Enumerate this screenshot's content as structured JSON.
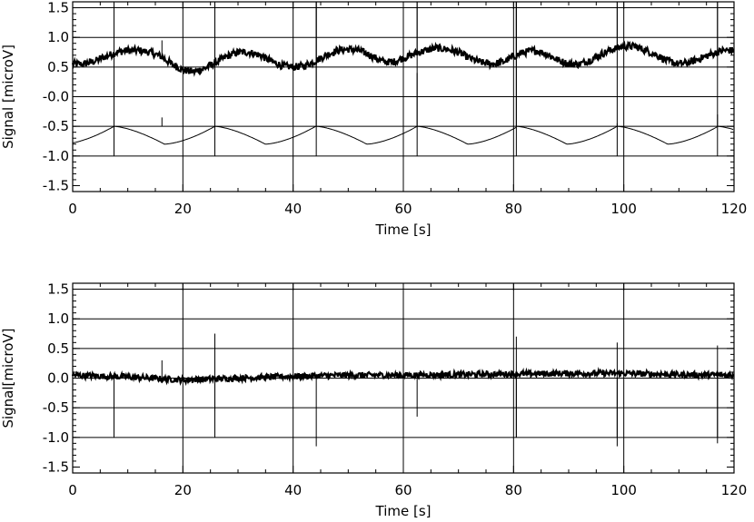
{
  "chart_data": [
    {
      "type": "line",
      "xlabel": "Time [s]",
      "ylabel": "Signal [microV]",
      "xlim": [
        0,
        120
      ],
      "ylim": [
        -1.6,
        1.6
      ],
      "x_ticks": [
        0,
        20,
        40,
        60,
        80,
        100,
        120
      ],
      "y_ticks": [
        -1.5,
        -1.0,
        -0.5,
        -0.0,
        0.5,
        1.0,
        1.5
      ],
      "y_tick_labels": [
        "-1.5",
        "-1.0",
        "-0.5",
        "-0.0",
        "0.5",
        "1.0",
        "1.5"
      ],
      "grid": true,
      "series": [
        {
          "x": [
            0,
            2,
            4,
            6,
            8,
            10,
            12,
            14,
            16,
            18,
            20,
            22,
            24,
            26,
            28,
            30,
            32,
            34,
            36,
            38,
            40,
            42,
            44,
            46,
            48,
            50,
            52,
            54,
            56,
            58,
            60,
            62,
            64,
            66,
            68,
            70,
            72,
            74,
            76,
            78,
            80,
            82,
            84,
            86,
            88,
            90,
            92,
            94,
            96,
            98,
            100,
            102,
            104,
            106,
            108,
            110,
            112,
            114,
            116,
            118,
            120
          ],
          "values": [
            0.55,
            0.55,
            0.6,
            0.68,
            0.75,
            0.78,
            0.78,
            0.75,
            0.68,
            0.55,
            0.45,
            0.42,
            0.48,
            0.58,
            0.68,
            0.75,
            0.75,
            0.7,
            0.6,
            0.52,
            0.5,
            0.52,
            0.6,
            0.7,
            0.78,
            0.8,
            0.78,
            0.7,
            0.6,
            0.58,
            0.65,
            0.72,
            0.78,
            0.82,
            0.8,
            0.75,
            0.65,
            0.58,
            0.55,
            0.58,
            0.68,
            0.75,
            0.78,
            0.72,
            0.62,
            0.55,
            0.55,
            0.62,
            0.72,
            0.8,
            0.85,
            0.85,
            0.78,
            0.7,
            0.6,
            0.55,
            0.58,
            0.65,
            0.72,
            0.78,
            0.78
          ],
          "noise_amplitude": 0.06,
          "spikes": [
            {
              "x": 7.5,
              "to": 1.6
            },
            {
              "x": 16.2,
              "to": 0.95
            },
            {
              "x": 25.8,
              "to": 1.6
            },
            {
              "x": 44.2,
              "to": 1.6
            },
            {
              "x": 62.5,
              "to": 1.6
            },
            {
              "x": 80.5,
              "to": 1.6
            },
            {
              "x": 98.8,
              "to": 1.6
            },
            {
              "x": 117.0,
              "to": 1.6
            }
          ]
        },
        {
          "sawtooth": true,
          "period": 18.3,
          "resets": [
            7.5,
            25.8,
            44.2,
            62.5,
            80.5,
            98.8,
            117.0
          ],
          "low": -0.8,
          "high": -0.5,
          "spikes": [
            {
              "x": 7.5,
              "to": -0.3
            },
            {
              "x": 16.2,
              "to": -0.35
            },
            {
              "x": 25.8,
              "to": -0.02
            },
            {
              "x": 44.2,
              "to": 1.6
            },
            {
              "x": 62.5,
              "to": 0.4
            },
            {
              "x": 80.5,
              "to": 1.6
            },
            {
              "x": 98.8,
              "to": -0.45
            },
            {
              "x": 117.0,
              "to": -0.3
            }
          ]
        }
      ],
      "vlines": [
        7.5,
        25.8,
        44.2,
        62.5,
        80.5,
        98.8,
        117.0
      ],
      "vlines_range": [
        -1.0,
        1.6
      ]
    },
    {
      "type": "line",
      "xlabel": "Time [s]",
      "ylabel": "Signal[microV]",
      "xlim": [
        0,
        120
      ],
      "ylim": [
        -1.6,
        1.6
      ],
      "x_ticks": [
        0,
        20,
        40,
        60,
        80,
        100,
        120
      ],
      "y_ticks": [
        -1.5,
        -1.0,
        -0.5,
        0.0,
        0.5,
        1.0,
        1.5
      ],
      "y_tick_labels": [
        "-1.5",
        "-1.0",
        "-0.5",
        "0.0",
        "0.5",
        "1.0",
        "1.5"
      ],
      "grid": true,
      "series": [
        {
          "x": [
            0,
            10,
            20,
            30,
            40,
            50,
            60,
            70,
            80,
            90,
            100,
            110,
            120
          ],
          "values": [
            0.05,
            0.02,
            -0.03,
            0.0,
            0.03,
            0.05,
            0.05,
            0.06,
            0.07,
            0.08,
            0.08,
            0.06,
            0.05
          ],
          "noise_amplitude": 0.05,
          "spikes": [
            {
              "x": 7.5,
              "to": -0.2
            },
            {
              "x": 16.2,
              "to": 0.3
            },
            {
              "x": 25.8,
              "to": 0.75
            },
            {
              "x": 25.8,
              "to": -0.55
            },
            {
              "x": 44.2,
              "to": -1.15
            },
            {
              "x": 62.5,
              "to": -0.65
            },
            {
              "x": 80.5,
              "to": 0.7
            },
            {
              "x": 80.5,
              "to": -1.0
            },
            {
              "x": 98.8,
              "to": 0.6
            },
            {
              "x": 98.8,
              "to": -1.15
            },
            {
              "x": 117.0,
              "to": 0.55
            },
            {
              "x": 117.0,
              "to": -1.1
            }
          ]
        }
      ],
      "vlines": [
        7.5,
        25.8,
        80.5,
        98.8,
        117.0
      ],
      "vlines_range": [
        -1.0,
        0.0
      ]
    }
  ]
}
